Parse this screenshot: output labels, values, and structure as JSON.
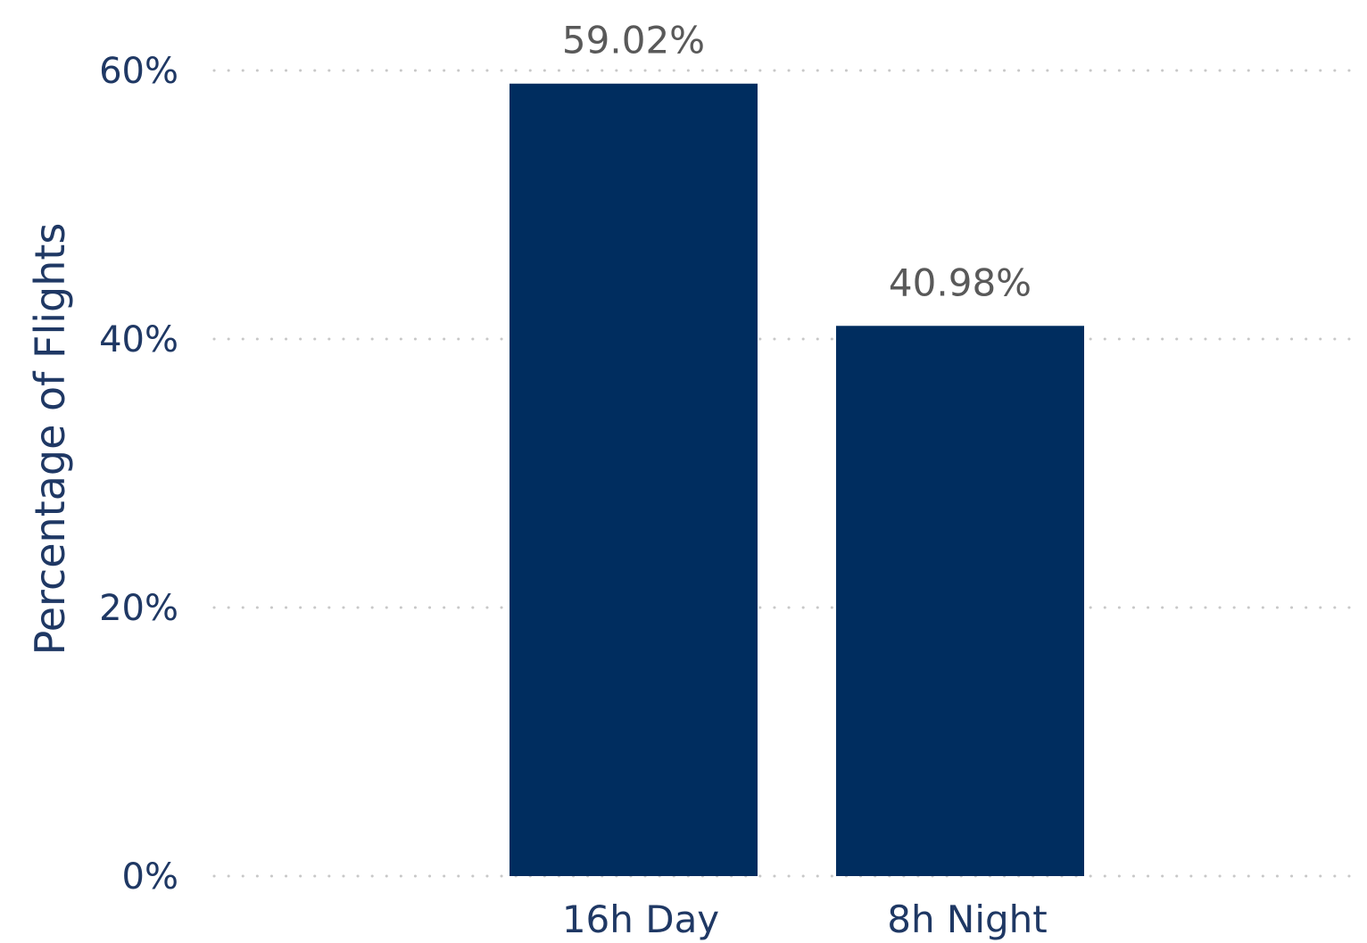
{
  "chart_data": {
    "type": "bar",
    "categories": [
      "16h Day",
      "8h Night"
    ],
    "values": [
      59.02,
      40.98
    ],
    "data_labels": [
      "59.02%",
      "40.98%"
    ],
    "title": "",
    "xlabel": "",
    "ylabel": "Percentage of Flights",
    "ylim": [
      0,
      60
    ],
    "yticks": [
      0,
      20,
      40,
      60
    ],
    "ytick_labels": [
      "0%",
      "20%",
      "40%",
      "60%"
    ],
    "grid": true,
    "legend": "none",
    "colors": {
      "bar": "#002d5f",
      "axis_text": "#1f3864",
      "data_label": "#595959",
      "gridline": "#c8c8c8"
    }
  }
}
